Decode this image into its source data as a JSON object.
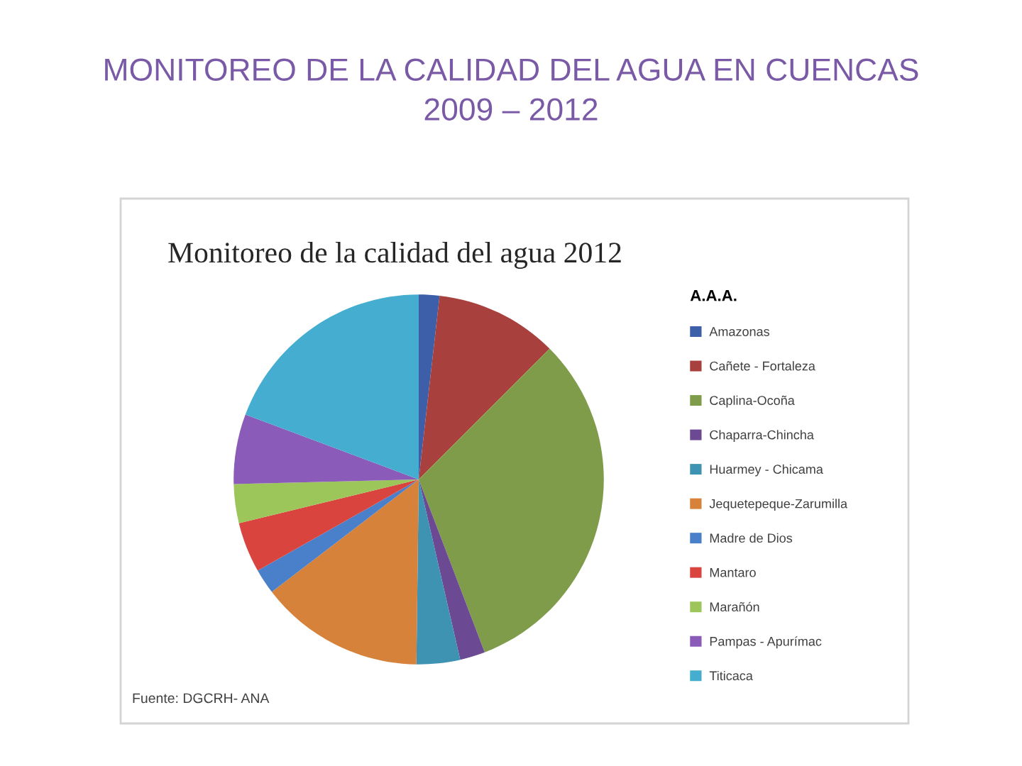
{
  "chart_data": {
    "type": "pie",
    "title": "MONITOREO DE LA CALIDAD DEL AGUA EN CUENCAS\n2009 – 2012",
    "subtitle": "Monitoreo de la calidad del agua 2012",
    "legend_title": "A.A.A.",
    "categories": [
      "Amazonas",
      "Cañete - Fortaleza",
      "Caplina-Ocoña",
      "Chaparra-Chincha",
      "Huarmey - Chicama",
      "Jequetepeque-Zarumilla",
      "Madre de Dios",
      "Mantaro",
      "Marañón",
      "Pampas - Apurímac",
      "Titicaca"
    ],
    "values": [
      1.8,
      10.7,
      31.7,
      2.2,
      3.8,
      14.4,
      2.2,
      4.4,
      3.4,
      6.1,
      19.3
    ],
    "colors": [
      "#3d5ea8",
      "#a8403d",
      "#7f9c4a",
      "#6b4a93",
      "#3e93b3",
      "#d7823a",
      "#4a7fc9",
      "#d9443f",
      "#9cc55a",
      "#8a5bb8",
      "#45aed0"
    ],
    "legend": "right",
    "annotations": [
      "Fuente: DGCRH- ANA"
    ]
  }
}
